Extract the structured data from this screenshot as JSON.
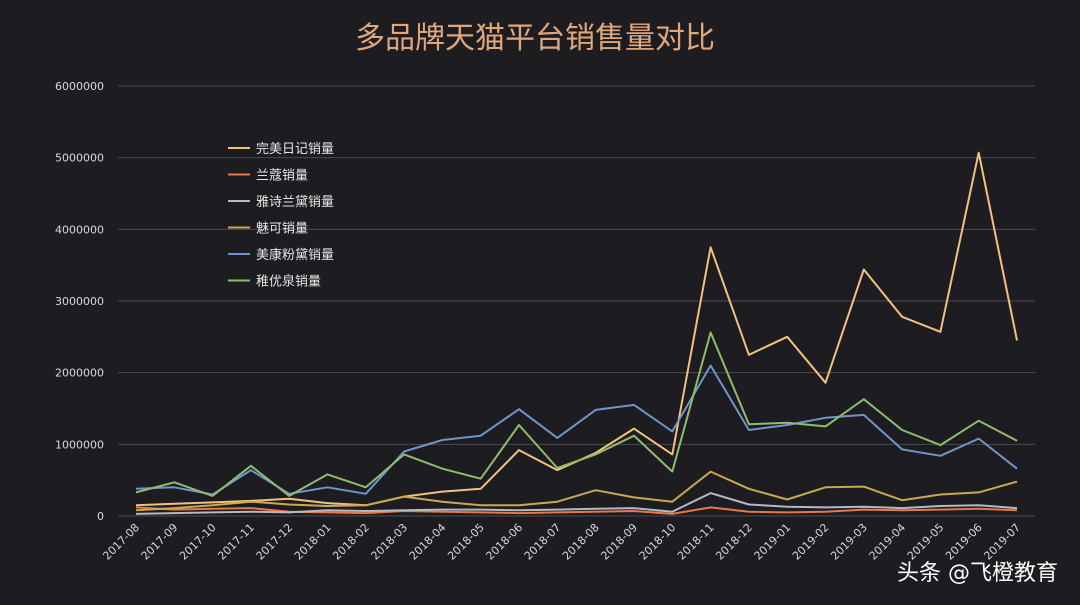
{
  "chart_data": {
    "type": "line",
    "title": "多品牌天猫平台销售量对比",
    "xlabel": "",
    "ylabel": "",
    "ylim": [
      0,
      6000000
    ],
    "yticks": [
      "0",
      "1000000",
      "2000000",
      "3000000",
      "4000000",
      "5000000",
      "6000000"
    ],
    "grid": true,
    "legend_position": "upper-left",
    "categories": [
      "2017-08",
      "2017-09",
      "2017-10",
      "2017-11",
      "2017-12",
      "2018-01",
      "2018-02",
      "2018-03",
      "2018-04",
      "2018-05",
      "2018-06",
      "2018-07",
      "2018-08",
      "2018-09",
      "2018-10",
      "2018-11",
      "2018-12",
      "2019-01",
      "2019-02",
      "2019-03",
      "2019-04",
      "2019-05",
      "2019-06",
      "2019-07"
    ],
    "series": [
      {
        "name": "完美日记销量",
        "color": "#f2c27c",
        "values": [
          150000,
          170000,
          190000,
          210000,
          240000,
          180000,
          150000,
          270000,
          340000,
          380000,
          920000,
          640000,
          880000,
          1220000,
          860000,
          3750000,
          2250000,
          2500000,
          1860000,
          3440000,
          2780000,
          2570000,
          5070000,
          2450000
        ]
      },
      {
        "name": "兰蔻销量",
        "color": "#e8774a",
        "values": [
          120000,
          90000,
          100000,
          110000,
          60000,
          50000,
          40000,
          70000,
          60000,
          50000,
          40000,
          50000,
          60000,
          70000,
          30000,
          120000,
          60000,
          50000,
          60000,
          90000,
          80000,
          90000,
          100000,
          80000
        ]
      },
      {
        "name": "雅诗兰黛销量",
        "color": "#b6b9c3",
        "values": [
          30000,
          40000,
          50000,
          60000,
          50000,
          80000,
          70000,
          80000,
          90000,
          90000,
          80000,
          90000,
          100000,
          110000,
          60000,
          320000,
          160000,
          130000,
          120000,
          130000,
          110000,
          140000,
          150000,
          110000
        ]
      },
      {
        "name": "魅可销量",
        "color": "#c9a94f",
        "values": [
          80000,
          110000,
          150000,
          200000,
          160000,
          140000,
          150000,
          270000,
          200000,
          150000,
          150000,
          200000,
          360000,
          260000,
          200000,
          620000,
          380000,
          230000,
          400000,
          410000,
          220000,
          300000,
          330000,
          480000
        ]
      },
      {
        "name": "美康粉黛销量",
        "color": "#6f95c9",
        "values": [
          380000,
          400000,
          300000,
          640000,
          310000,
          400000,
          310000,
          900000,
          1060000,
          1120000,
          1490000,
          1090000,
          1480000,
          1550000,
          1180000,
          2100000,
          1200000,
          1270000,
          1370000,
          1410000,
          930000,
          840000,
          1080000,
          660000
        ]
      },
      {
        "name": "稚优泉销量",
        "color": "#8fbe6a",
        "values": [
          330000,
          470000,
          280000,
          700000,
          280000,
          580000,
          400000,
          860000,
          660000,
          520000,
          1270000,
          670000,
          860000,
          1120000,
          620000,
          2560000,
          1280000,
          1300000,
          1250000,
          1630000,
          1200000,
          990000,
          1330000,
          1050000
        ]
      }
    ]
  },
  "watermark": "头条 @飞橙教育"
}
